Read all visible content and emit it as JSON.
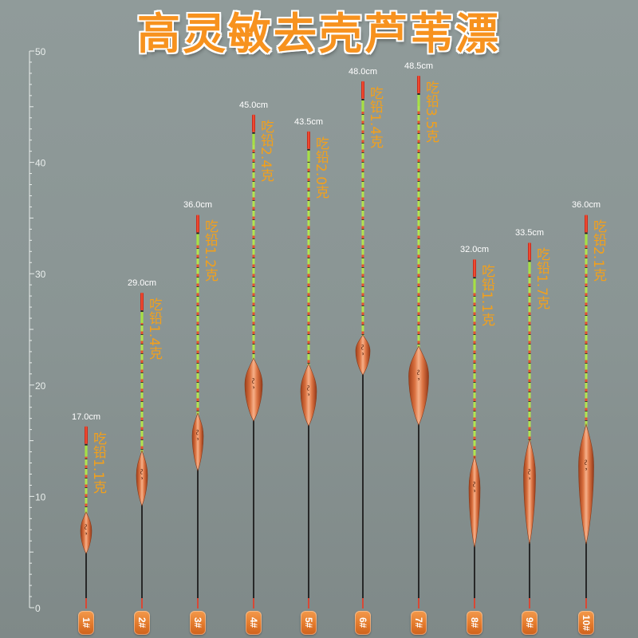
{
  "title": "高灵敏去壳芦苇漂",
  "ruler": {
    "labels": [
      "0",
      "10",
      "20",
      "30",
      "40",
      "50"
    ],
    "range_cm": [
      0,
      50
    ]
  },
  "floats": [
    {
      "number": "1#",
      "length_cm": 17.0,
      "length_label": "17.0cm",
      "lead_label": "吃铅1.1克"
    },
    {
      "number": "2#",
      "length_cm": 29.0,
      "length_label": "29.0cm",
      "lead_label": "吃铅1.4克"
    },
    {
      "number": "3#",
      "length_cm": 36.0,
      "length_label": "36.0cm",
      "lead_label": "吃铅1.2克"
    },
    {
      "number": "4#",
      "length_cm": 45.0,
      "length_label": "45.0cm",
      "lead_label": "吃铅2.4克"
    },
    {
      "number": "5#",
      "length_cm": 43.5,
      "length_label": "43.5cm",
      "lead_label": "吃铅2.0克"
    },
    {
      "number": "6#",
      "length_cm": 48.0,
      "length_label": "48.0cm",
      "lead_label": "吃铅1.4克"
    },
    {
      "number": "7#",
      "length_cm": 48.5,
      "length_label": "48.5cm",
      "lead_label": "吃铅3.5克"
    },
    {
      "number": "8#",
      "length_cm": 32.0,
      "length_label": "32.0cm",
      "lead_label": "吃铅1.1克"
    },
    {
      "number": "9#",
      "length_cm": 33.5,
      "length_label": "33.5cm",
      "lead_label": "吃铅1.7克"
    },
    {
      "number": "10#",
      "length_cm": 36.0,
      "length_label": "36.0cm",
      "lead_label": "吃铅2.1克"
    }
  ],
  "colors": {
    "title": "#f7921e",
    "lead_label": "#f3a01b",
    "badge": "#e37a2c",
    "ruler": "#e9eeec",
    "antenna_green": "#b2e44e",
    "antenna_red": "#e4532f",
    "tail": "#1d1d1d"
  }
}
